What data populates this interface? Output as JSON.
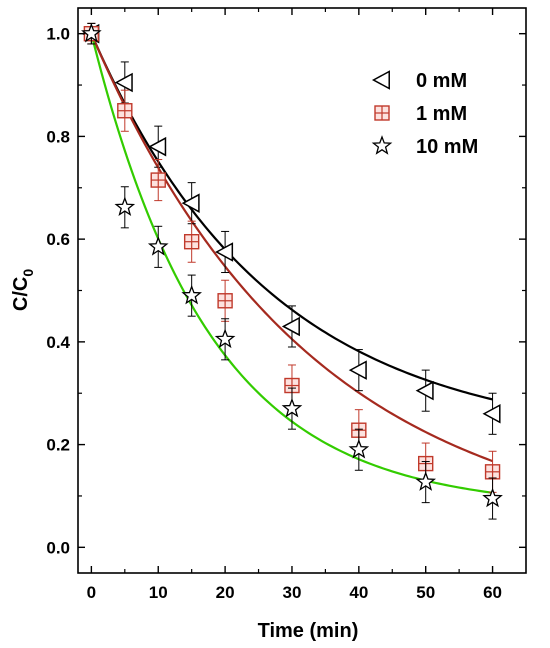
{
  "chart_data": {
    "type": "scatter",
    "xlabel": "Time (min)",
    "ylabel": {
      "main": "C/C",
      "subscript": "0"
    },
    "xlim": [
      -2,
      65
    ],
    "ylim": [
      -0.05,
      1.05
    ],
    "xticks": [
      0,
      10,
      20,
      30,
      40,
      50,
      60
    ],
    "yticks": [
      0.0,
      0.2,
      0.4,
      0.6,
      0.8,
      1.0
    ],
    "xtick_labels": [
      "0",
      "10",
      "20",
      "30",
      "40",
      "50",
      "60"
    ],
    "ytick_labels": [
      "0.0",
      "0.2",
      "0.4",
      "0.6",
      "0.8",
      "1.0"
    ],
    "grid": false,
    "legend_position": "top-right",
    "series": [
      {
        "name": "0 mM",
        "marker": "triangle-left",
        "marker_color": "#000000",
        "line_color": "#000000",
        "x": [
          0,
          5,
          10,
          15,
          20,
          30,
          40,
          50,
          60
        ],
        "y": [
          1.0,
          0.905,
          0.78,
          0.67,
          0.575,
          0.43,
          0.345,
          0.305,
          0.26
        ],
        "err": [
          0.02,
          0.04,
          0.04,
          0.04,
          0.04,
          0.04,
          0.04,
          0.04,
          0.04
        ],
        "fit": {
          "a": 0.796,
          "k": 0.0375,
          "c": 0.204
        }
      },
      {
        "name": "1 mM",
        "marker": "square-plus",
        "marker_color": "#c0392b",
        "line_color": "#a52a1f",
        "x": [
          0,
          5,
          10,
          15,
          20,
          30,
          40,
          50,
          60
        ],
        "y": [
          1.0,
          0.85,
          0.715,
          0.595,
          0.48,
          0.315,
          0.228,
          0.163,
          0.147
        ],
        "err": [
          0.02,
          0.04,
          0.04,
          0.04,
          0.04,
          0.04,
          0.04,
          0.04,
          0.04
        ],
        "fit": {
          "a": 0.99,
          "k": 0.0306,
          "c": 0.01
        }
      },
      {
        "name": "10 mM",
        "marker": "star",
        "marker_color": "#000000",
        "line_color": "#33cc00",
        "x": [
          0,
          5,
          10,
          15,
          20,
          30,
          40,
          50,
          60
        ],
        "y": [
          1.0,
          0.662,
          0.585,
          0.49,
          0.405,
          0.27,
          0.19,
          0.127,
          0.095
        ],
        "err": [
          0.02,
          0.04,
          0.04,
          0.04,
          0.04,
          0.04,
          0.04,
          0.04,
          0.04
        ],
        "fit": {
          "a": 0.925,
          "k": 0.0565,
          "c": 0.075
        }
      }
    ]
  }
}
